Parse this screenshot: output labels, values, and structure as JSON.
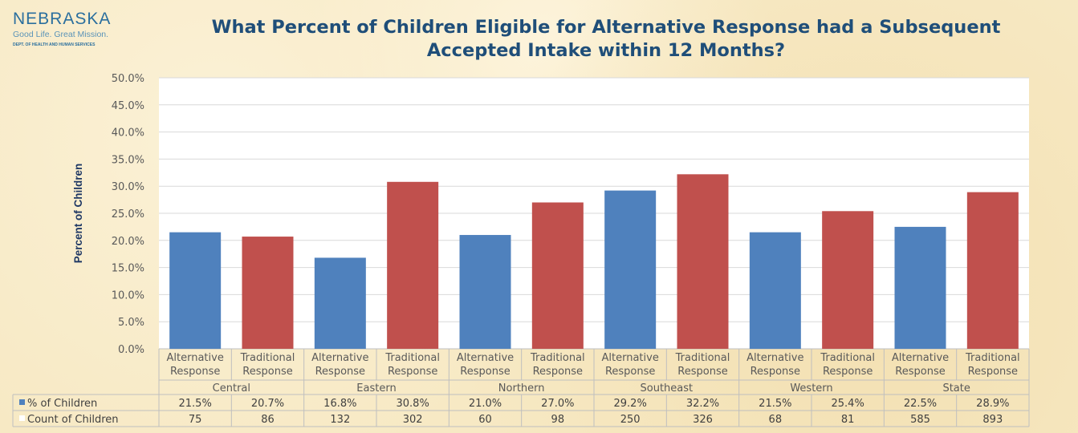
{
  "logo": {
    "name": "NEBRASKA",
    "tagline": "Good Life. Great Mission.",
    "dept": "DEPT. OF HEALTH AND HUMAN SERVICES"
  },
  "chart_data": {
    "type": "bar",
    "title_line1": "What Percent of Children Eligible for Alternative Response had a Subsequent",
    "title_line2": "Accepted Intake within 12 Months?",
    "ylabel": "Percent of Children",
    "ylim": [
      0,
      50
    ],
    "yticks": [
      "0.0%",
      "5.0%",
      "10.0%",
      "15.0%",
      "20.0%",
      "25.0%",
      "30.0%",
      "35.0%",
      "40.0%",
      "45.0%",
      "50.0%"
    ],
    "grid": true,
    "groups": [
      "Central",
      "Eastern",
      "Northern",
      "Southeast",
      "Western",
      "State"
    ],
    "categories": [
      [
        "Alternative",
        "Response"
      ],
      [
        "Traditional",
        "Response"
      ],
      [
        "Alternative",
        "Response"
      ],
      [
        "Traditional",
        "Response"
      ],
      [
        "Alternative",
        "Response"
      ],
      [
        "Traditional",
        "Response"
      ],
      [
        "Alternative",
        "Response"
      ],
      [
        "Traditional",
        "Response"
      ],
      [
        "Alternative",
        "Response"
      ],
      [
        "Traditional",
        "Response"
      ],
      [
        "Alternative",
        "Response"
      ],
      [
        "Traditional",
        "Response"
      ]
    ],
    "values": [
      21.5,
      20.7,
      16.8,
      30.8,
      21.0,
      27.0,
      29.2,
      32.2,
      21.5,
      25.4,
      22.5,
      28.9
    ],
    "colors": {
      "alternative": "#4f81bd",
      "traditional": "#c0504d"
    },
    "table": [
      {
        "name": "% of Children",
        "swatch": "#4f81bd",
        "values": [
          "21.5%",
          "20.7%",
          "16.8%",
          "30.8%",
          "21.0%",
          "27.0%",
          "29.2%",
          "32.2%",
          "21.5%",
          "25.4%",
          "22.5%",
          "28.9%"
        ]
      },
      {
        "name": "Count of Children",
        "swatch": "#ffffff",
        "values": [
          "75",
          "86",
          "132",
          "302",
          "60",
          "98",
          "250",
          "326",
          "68",
          "81",
          "585",
          "893"
        ]
      }
    ]
  }
}
